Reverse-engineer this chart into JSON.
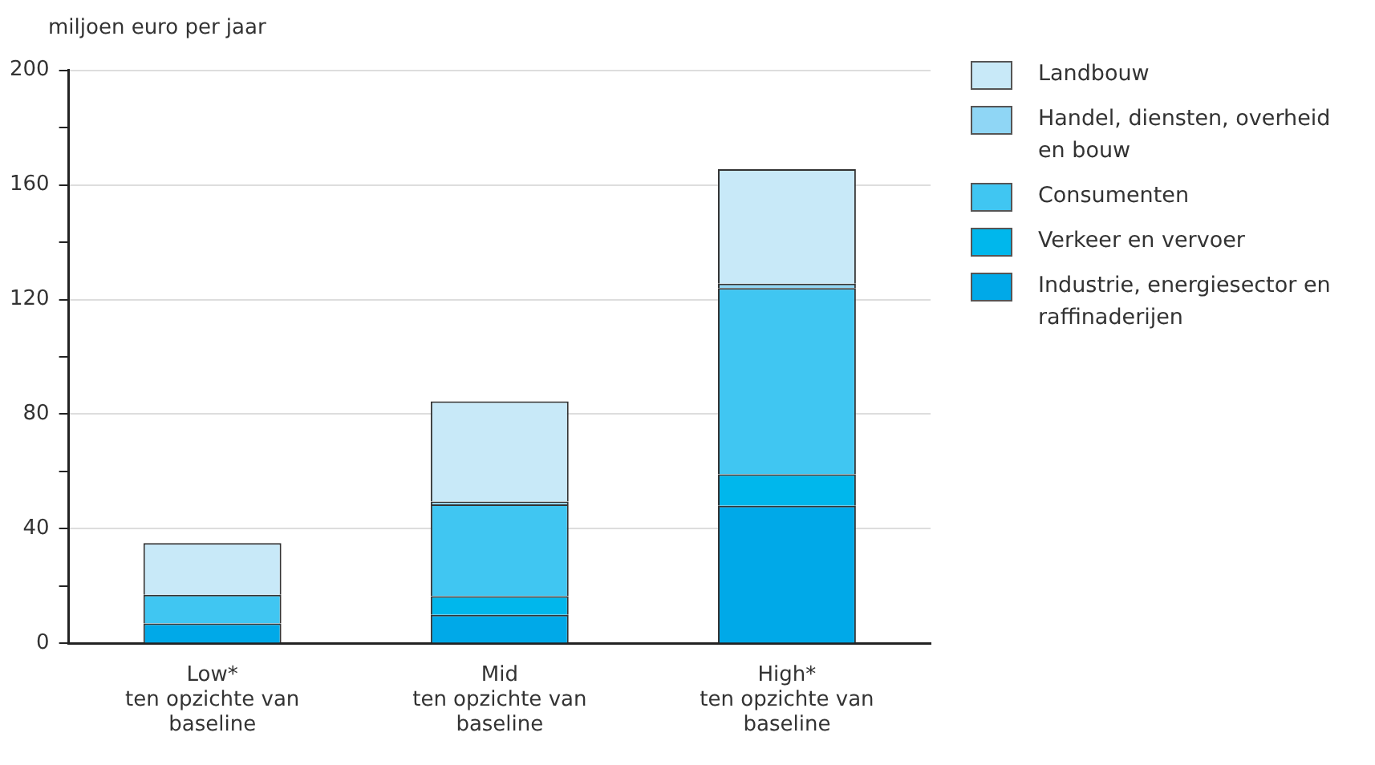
{
  "chart_data": {
    "type": "bar",
    "stacked": true,
    "ylabel": "miljoen euro per jaar",
    "categories": [
      "Low*\nten opzichte van\nbaseline",
      "Mid\nten opzichte van\nbaseline",
      "High*\nten opzichte van\nbaseline"
    ],
    "series": [
      {
        "name": "Industrie, energiesector en raffinaderijen",
        "color": "#00a9e8",
        "values": [
          7,
          10,
          48
        ]
      },
      {
        "name": "Verkeer en vervoer",
        "color": "#00b7ec",
        "values": [
          0,
          6.5,
          11
        ]
      },
      {
        "name": "Consumenten",
        "color": "#40c6f2",
        "values": [
          10,
          32,
          65
        ]
      },
      {
        "name": "Handel, diensten, overheid en bouw",
        "color": "#8fd6f5",
        "values": [
          0,
          1,
          1.5
        ]
      },
      {
        "name": "Landbouw",
        "color": "#c8e9f8",
        "values": [
          18,
          35,
          40
        ]
      }
    ],
    "ylim": [
      0,
      200
    ],
    "yticks": [
      0,
      {
        "value": 20,
        "label": null
      },
      40,
      {
        "value": 60,
        "label": null
      },
      80,
      {
        "value": 100,
        "label": null
      },
      120,
      {
        "value": 140,
        "label": null
      },
      160,
      {
        "value": 180,
        "label": null
      },
      200
    ],
    "grid": "y",
    "legend": "right"
  }
}
